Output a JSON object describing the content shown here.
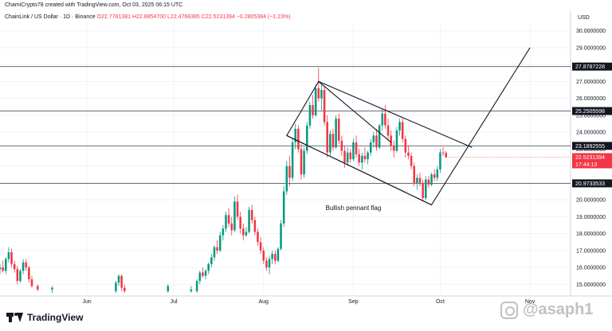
{
  "header": {
    "created_line": "ChamiCrypto78 created with TradingView.com, Oct 03, 2025 06:15 UTC",
    "symbol_line": "ChainLink / US Dollar · 1D · Binance",
    "ohlc": {
      "open": "O22.7781381",
      "high": "H22.8854700",
      "low": "L22.4768385",
      "close": "C22.5231394",
      "change": "−0.2805384 (−1.23%)"
    },
    "currency": "USD"
  },
  "branding": {
    "logo_text": "TradingView",
    "watermark_text": "@asaph1"
  },
  "colors": {
    "up": "#089981",
    "down": "#f23645",
    "line": "#131722",
    "grid": "#f0f3fa",
    "level": "#555a64",
    "axis_text": "#131722"
  },
  "chart_data": {
    "type": "candlestick",
    "title": "",
    "xlabel": "",
    "ylabel": "",
    "ylim": [
      14.5,
      30.5
    ],
    "y_ticks": [
      "15.0000000",
      "16.0000000",
      "17.0000000",
      "18.0000000",
      "19.0000000",
      "20.0000000",
      "21.0000000",
      "22.0000000",
      "23.0000000",
      "24.0000000",
      "25.0000000",
      "26.0000000",
      "27.0000000",
      "28.0000000",
      "29.0000000",
      "30.0000000"
    ],
    "x_ticks": [
      {
        "label": "Jun",
        "date": "2025-06-01"
      },
      {
        "label": "Jul",
        "date": "2025-07-01"
      },
      {
        "label": "Aug",
        "date": "2025-08-01"
      },
      {
        "label": "Sep",
        "date": "2025-09-01"
      },
      {
        "label": "Oct",
        "date": "2025-10-01"
      },
      {
        "label": "Nov",
        "date": "2025-11-01"
      }
    ],
    "x_range": [
      "2025-05-02",
      "2025-11-15"
    ],
    "horizontal_levels": [
      {
        "value": 27.8787228,
        "label": "27.8787228"
      },
      {
        "value": 25.2505598,
        "label": "25.2505598"
      },
      {
        "value": 23.1892555,
        "label": "23.1892555"
      },
      {
        "value": 20.9733533,
        "label": "20.9733533"
      }
    ],
    "current_price": {
      "value": 22.5231394,
      "label": "22.5231394",
      "countdown": "17:44:13"
    },
    "annotation": {
      "text": "Bullish pennant flag",
      "date": "2025-09-01",
      "value": 19.4
    },
    "trendlines": [
      {
        "name": "upper-channel",
        "points": [
          [
            "2025-08-20",
            27.0
          ],
          [
            "2025-10-12",
            23.1
          ]
        ]
      },
      {
        "name": "lower-channel",
        "points": [
          [
            "2025-08-09",
            23.8
          ],
          [
            "2025-09-28",
            19.7
          ]
        ]
      },
      {
        "name": "projection",
        "points": [
          [
            "2025-09-14",
            23.4
          ],
          [
            "2025-08-20",
            27.0
          ],
          [
            "2025-08-09",
            23.8
          ],
          [
            "2025-09-28",
            19.7
          ],
          [
            "2025-11-01",
            29.0
          ]
        ]
      }
    ],
    "candles": [
      {
        "d": "2025-05-02",
        "o": 15.9,
        "h": 16.2,
        "l": 15.6,
        "c": 16.0
      },
      {
        "d": "2025-05-03",
        "o": 16.0,
        "h": 16.4,
        "l": 15.7,
        "c": 15.8
      },
      {
        "d": "2025-05-04",
        "o": 15.8,
        "h": 16.6,
        "l": 15.6,
        "c": 16.5
      },
      {
        "d": "2025-05-05",
        "o": 16.5,
        "h": 17.2,
        "l": 16.3,
        "c": 16.9
      },
      {
        "d": "2025-05-06",
        "o": 16.9,
        "h": 17.1,
        "l": 16.0,
        "c": 16.2
      },
      {
        "d": "2025-05-07",
        "o": 16.2,
        "h": 16.4,
        "l": 15.7,
        "c": 15.9
      },
      {
        "d": "2025-05-08",
        "o": 15.9,
        "h": 16.1,
        "l": 15.0,
        "c": 15.2
      },
      {
        "d": "2025-05-09",
        "o": 15.2,
        "h": 15.9,
        "l": 15.1,
        "c": 15.8
      },
      {
        "d": "2025-05-10",
        "o": 15.8,
        "h": 16.5,
        "l": 15.6,
        "c": 16.3
      },
      {
        "d": "2025-05-11",
        "o": 16.3,
        "h": 16.5,
        "l": 15.8,
        "c": 16.0
      },
      {
        "d": "2025-05-12",
        "o": 16.0,
        "h": 16.1,
        "l": 15.1,
        "c": 15.3
      },
      {
        "d": "2025-05-13",
        "o": 15.3,
        "h": 15.5,
        "l": 14.8,
        "c": 14.9
      },
      {
        "d": "2025-05-15",
        "o": 14.9,
        "h": 15.0,
        "l": 14.6,
        "c": 14.7
      },
      {
        "d": "2025-05-20",
        "o": 14.7,
        "h": 14.9,
        "l": 14.5,
        "c": 14.8
      },
      {
        "d": "2025-06-11",
        "o": 14.6,
        "h": 15.2,
        "l": 14.5,
        "c": 15.1
      },
      {
        "d": "2025-06-12",
        "o": 15.1,
        "h": 15.6,
        "l": 14.9,
        "c": 15.5
      },
      {
        "d": "2025-06-13",
        "o": 15.5,
        "h": 15.6,
        "l": 14.6,
        "c": 14.8
      },
      {
        "d": "2025-06-14",
        "o": 14.8,
        "h": 15.0,
        "l": 14.5,
        "c": 14.6
      },
      {
        "d": "2025-06-29",
        "o": 14.6,
        "h": 15.0,
        "l": 14.5,
        "c": 14.9
      },
      {
        "d": "2025-07-07",
        "o": 14.6,
        "h": 14.9,
        "l": 14.5,
        "c": 14.7
      },
      {
        "d": "2025-07-09",
        "o": 14.6,
        "h": 15.3,
        "l": 14.5,
        "c": 15.2
      },
      {
        "d": "2025-07-10",
        "o": 15.2,
        "h": 15.8,
        "l": 15.0,
        "c": 15.7
      },
      {
        "d": "2025-07-11",
        "o": 15.7,
        "h": 16.0,
        "l": 15.4,
        "c": 15.5
      },
      {
        "d": "2025-07-12",
        "o": 15.5,
        "h": 15.9,
        "l": 15.3,
        "c": 15.8
      },
      {
        "d": "2025-07-13",
        "o": 15.8,
        "h": 16.3,
        "l": 15.6,
        "c": 16.2
      },
      {
        "d": "2025-07-14",
        "o": 16.2,
        "h": 16.8,
        "l": 16.0,
        "c": 16.6
      },
      {
        "d": "2025-07-15",
        "o": 16.6,
        "h": 17.3,
        "l": 16.4,
        "c": 17.2
      },
      {
        "d": "2025-07-16",
        "o": 17.2,
        "h": 17.6,
        "l": 16.8,
        "c": 17.0
      },
      {
        "d": "2025-07-17",
        "o": 17.0,
        "h": 18.1,
        "l": 16.9,
        "c": 17.9
      },
      {
        "d": "2025-07-18",
        "o": 17.9,
        "h": 18.5,
        "l": 17.6,
        "c": 18.3
      },
      {
        "d": "2025-07-19",
        "o": 18.3,
        "h": 19.3,
        "l": 18.1,
        "c": 19.1
      },
      {
        "d": "2025-07-20",
        "o": 19.1,
        "h": 19.5,
        "l": 18.4,
        "c": 18.6
      },
      {
        "d": "2025-07-21",
        "o": 18.6,
        "h": 19.0,
        "l": 17.9,
        "c": 18.2
      },
      {
        "d": "2025-07-22",
        "o": 18.2,
        "h": 20.2,
        "l": 18.1,
        "c": 19.9
      },
      {
        "d": "2025-07-23",
        "o": 19.9,
        "h": 20.3,
        "l": 18.8,
        "c": 19.0
      },
      {
        "d": "2025-07-24",
        "o": 19.0,
        "h": 19.3,
        "l": 18.0,
        "c": 18.3
      },
      {
        "d": "2025-07-25",
        "o": 18.3,
        "h": 18.6,
        "l": 17.6,
        "c": 17.9
      },
      {
        "d": "2025-07-26",
        "o": 17.9,
        "h": 18.4,
        "l": 17.8,
        "c": 18.1
      },
      {
        "d": "2025-07-27",
        "o": 18.1,
        "h": 19.6,
        "l": 18.0,
        "c": 19.4
      },
      {
        "d": "2025-07-28",
        "o": 19.4,
        "h": 19.7,
        "l": 18.6,
        "c": 18.8
      },
      {
        "d": "2025-07-29",
        "o": 18.8,
        "h": 19.0,
        "l": 17.9,
        "c": 18.1
      },
      {
        "d": "2025-07-30",
        "o": 18.1,
        "h": 18.3,
        "l": 17.3,
        "c": 17.5
      },
      {
        "d": "2025-07-31",
        "o": 17.5,
        "h": 17.8,
        "l": 16.8,
        "c": 17.0
      },
      {
        "d": "2025-08-01",
        "o": 17.0,
        "h": 17.2,
        "l": 16.2,
        "c": 16.4
      },
      {
        "d": "2025-08-02",
        "o": 16.4,
        "h": 16.6,
        "l": 15.8,
        "c": 16.0
      },
      {
        "d": "2025-08-03",
        "o": 16.0,
        "h": 16.7,
        "l": 15.6,
        "c": 16.5
      },
      {
        "d": "2025-08-04",
        "o": 16.5,
        "h": 17.0,
        "l": 16.2,
        "c": 16.8
      },
      {
        "d": "2025-08-05",
        "o": 16.8,
        "h": 17.0,
        "l": 16.2,
        "c": 16.4
      },
      {
        "d": "2025-08-06",
        "o": 16.4,
        "h": 17.2,
        "l": 16.3,
        "c": 17.1
      },
      {
        "d": "2025-08-07",
        "o": 17.1,
        "h": 18.8,
        "l": 17.0,
        "c": 18.6
      },
      {
        "d": "2025-08-08",
        "o": 18.6,
        "h": 20.8,
        "l": 18.4,
        "c": 20.5
      },
      {
        "d": "2025-08-09",
        "o": 20.5,
        "h": 22.3,
        "l": 20.3,
        "c": 22.0
      },
      {
        "d": "2025-08-10",
        "o": 22.0,
        "h": 22.6,
        "l": 20.8,
        "c": 21.3
      },
      {
        "d": "2025-08-11",
        "o": 21.3,
        "h": 23.6,
        "l": 21.1,
        "c": 23.4
      },
      {
        "d": "2025-08-12",
        "o": 23.4,
        "h": 24.5,
        "l": 23.0,
        "c": 24.2
      },
      {
        "d": "2025-08-13",
        "o": 24.2,
        "h": 24.4,
        "l": 22.8,
        "c": 23.0
      },
      {
        "d": "2025-08-14",
        "o": 23.0,
        "h": 23.3,
        "l": 21.2,
        "c": 21.5
      },
      {
        "d": "2025-08-15",
        "o": 21.5,
        "h": 23.1,
        "l": 21.3,
        "c": 22.9
      },
      {
        "d": "2025-08-16",
        "o": 22.9,
        "h": 24.6,
        "l": 22.7,
        "c": 24.4
      },
      {
        "d": "2025-08-17",
        "o": 24.4,
        "h": 25.8,
        "l": 24.2,
        "c": 25.6
      },
      {
        "d": "2025-08-18",
        "o": 25.6,
        "h": 26.2,
        "l": 24.8,
        "c": 25.0
      },
      {
        "d": "2025-08-19",
        "o": 25.0,
        "h": 26.8,
        "l": 24.9,
        "c": 26.6
      },
      {
        "d": "2025-08-20",
        "o": 26.6,
        "h": 27.8,
        "l": 25.8,
        "c": 26.0
      },
      {
        "d": "2025-08-21",
        "o": 26.0,
        "h": 26.8,
        "l": 25.3,
        "c": 26.5
      },
      {
        "d": "2025-08-22",
        "o": 26.5,
        "h": 26.7,
        "l": 24.4,
        "c": 24.6
      },
      {
        "d": "2025-08-23",
        "o": 24.6,
        "h": 25.0,
        "l": 22.5,
        "c": 22.8
      },
      {
        "d": "2025-08-24",
        "o": 22.8,
        "h": 24.1,
        "l": 22.6,
        "c": 23.9
      },
      {
        "d": "2025-08-25",
        "o": 23.9,
        "h": 24.2,
        "l": 22.9,
        "c": 23.1
      },
      {
        "d": "2025-08-26",
        "o": 23.1,
        "h": 25.0,
        "l": 23.0,
        "c": 24.8
      },
      {
        "d": "2025-08-27",
        "o": 24.8,
        "h": 25.1,
        "l": 23.3,
        "c": 23.5
      },
      {
        "d": "2025-08-28",
        "o": 23.5,
        "h": 23.8,
        "l": 22.6,
        "c": 22.9
      },
      {
        "d": "2025-08-29",
        "o": 22.9,
        "h": 23.2,
        "l": 21.9,
        "c": 22.2
      },
      {
        "d": "2025-08-30",
        "o": 22.2,
        "h": 23.1,
        "l": 22.0,
        "c": 22.8
      },
      {
        "d": "2025-08-31",
        "o": 22.8,
        "h": 23.0,
        "l": 22.2,
        "c": 22.4
      },
      {
        "d": "2025-09-01",
        "o": 22.4,
        "h": 23.6,
        "l": 22.3,
        "c": 23.4
      },
      {
        "d": "2025-09-02",
        "o": 23.4,
        "h": 23.8,
        "l": 22.5,
        "c": 22.7
      },
      {
        "d": "2025-09-03",
        "o": 22.7,
        "h": 23.0,
        "l": 22.0,
        "c": 22.2
      },
      {
        "d": "2025-09-04",
        "o": 22.2,
        "h": 22.8,
        "l": 21.8,
        "c": 22.6
      },
      {
        "d": "2025-09-05",
        "o": 22.6,
        "h": 23.1,
        "l": 22.2,
        "c": 22.4
      },
      {
        "d": "2025-09-06",
        "o": 22.4,
        "h": 22.9,
        "l": 22.1,
        "c": 22.8
      },
      {
        "d": "2025-09-07",
        "o": 22.8,
        "h": 23.6,
        "l": 22.6,
        "c": 23.4
      },
      {
        "d": "2025-09-08",
        "o": 23.4,
        "h": 24.0,
        "l": 23.1,
        "c": 23.8
      },
      {
        "d": "2025-09-09",
        "o": 23.8,
        "h": 24.2,
        "l": 22.9,
        "c": 23.1
      },
      {
        "d": "2025-09-10",
        "o": 23.1,
        "h": 24.5,
        "l": 23.0,
        "c": 24.4
      },
      {
        "d": "2025-09-11",
        "o": 24.4,
        "h": 25.4,
        "l": 24.1,
        "c": 25.1
      },
      {
        "d": "2025-09-12",
        "o": 25.1,
        "h": 25.6,
        "l": 24.2,
        "c": 24.4
      },
      {
        "d": "2025-09-13",
        "o": 24.4,
        "h": 24.8,
        "l": 23.5,
        "c": 23.8
      },
      {
        "d": "2025-09-14",
        "o": 23.8,
        "h": 24.1,
        "l": 22.9,
        "c": 23.2
      },
      {
        "d": "2025-09-15",
        "o": 23.2,
        "h": 23.5,
        "l": 22.5,
        "c": 22.9
      },
      {
        "d": "2025-09-16",
        "o": 22.9,
        "h": 24.3,
        "l": 22.8,
        "c": 24.1
      },
      {
        "d": "2025-09-17",
        "o": 24.1,
        "h": 24.8,
        "l": 23.8,
        "c": 24.6
      },
      {
        "d": "2025-09-18",
        "o": 24.6,
        "h": 24.8,
        "l": 23.4,
        "c": 23.6
      },
      {
        "d": "2025-09-19",
        "o": 23.6,
        "h": 23.8,
        "l": 22.5,
        "c": 22.8
      },
      {
        "d": "2025-09-20",
        "o": 22.8,
        "h": 23.2,
        "l": 22.4,
        "c": 22.6
      },
      {
        "d": "2025-09-21",
        "o": 22.6,
        "h": 22.8,
        "l": 21.8,
        "c": 22.0
      },
      {
        "d": "2025-09-22",
        "o": 22.0,
        "h": 22.2,
        "l": 20.8,
        "c": 21.0
      },
      {
        "d": "2025-09-23",
        "o": 21.0,
        "h": 21.5,
        "l": 20.6,
        "c": 21.3
      },
      {
        "d": "2025-09-24",
        "o": 21.3,
        "h": 21.6,
        "l": 20.8,
        "c": 21.0
      },
      {
        "d": "2025-09-25",
        "o": 21.0,
        "h": 21.2,
        "l": 19.9,
        "c": 20.1
      },
      {
        "d": "2025-09-26",
        "o": 20.1,
        "h": 21.4,
        "l": 20.0,
        "c": 21.2
      },
      {
        "d": "2025-09-27",
        "o": 21.2,
        "h": 21.4,
        "l": 20.7,
        "c": 20.9
      },
      {
        "d": "2025-09-28",
        "o": 20.9,
        "h": 21.6,
        "l": 20.8,
        "c": 21.5
      },
      {
        "d": "2025-09-29",
        "o": 21.5,
        "h": 21.8,
        "l": 21.1,
        "c": 21.3
      },
      {
        "d": "2025-09-30",
        "o": 21.3,
        "h": 22.0,
        "l": 21.1,
        "c": 21.8
      },
      {
        "d": "2025-10-01",
        "o": 21.8,
        "h": 23.0,
        "l": 21.6,
        "c": 22.8
      },
      {
        "d": "2025-10-02",
        "o": 22.8,
        "h": 23.1,
        "l": 22.6,
        "c": 22.78
      },
      {
        "d": "2025-10-03",
        "o": 22.7781381,
        "h": 22.88547,
        "l": 22.4768385,
        "c": 22.5231394
      }
    ]
  }
}
